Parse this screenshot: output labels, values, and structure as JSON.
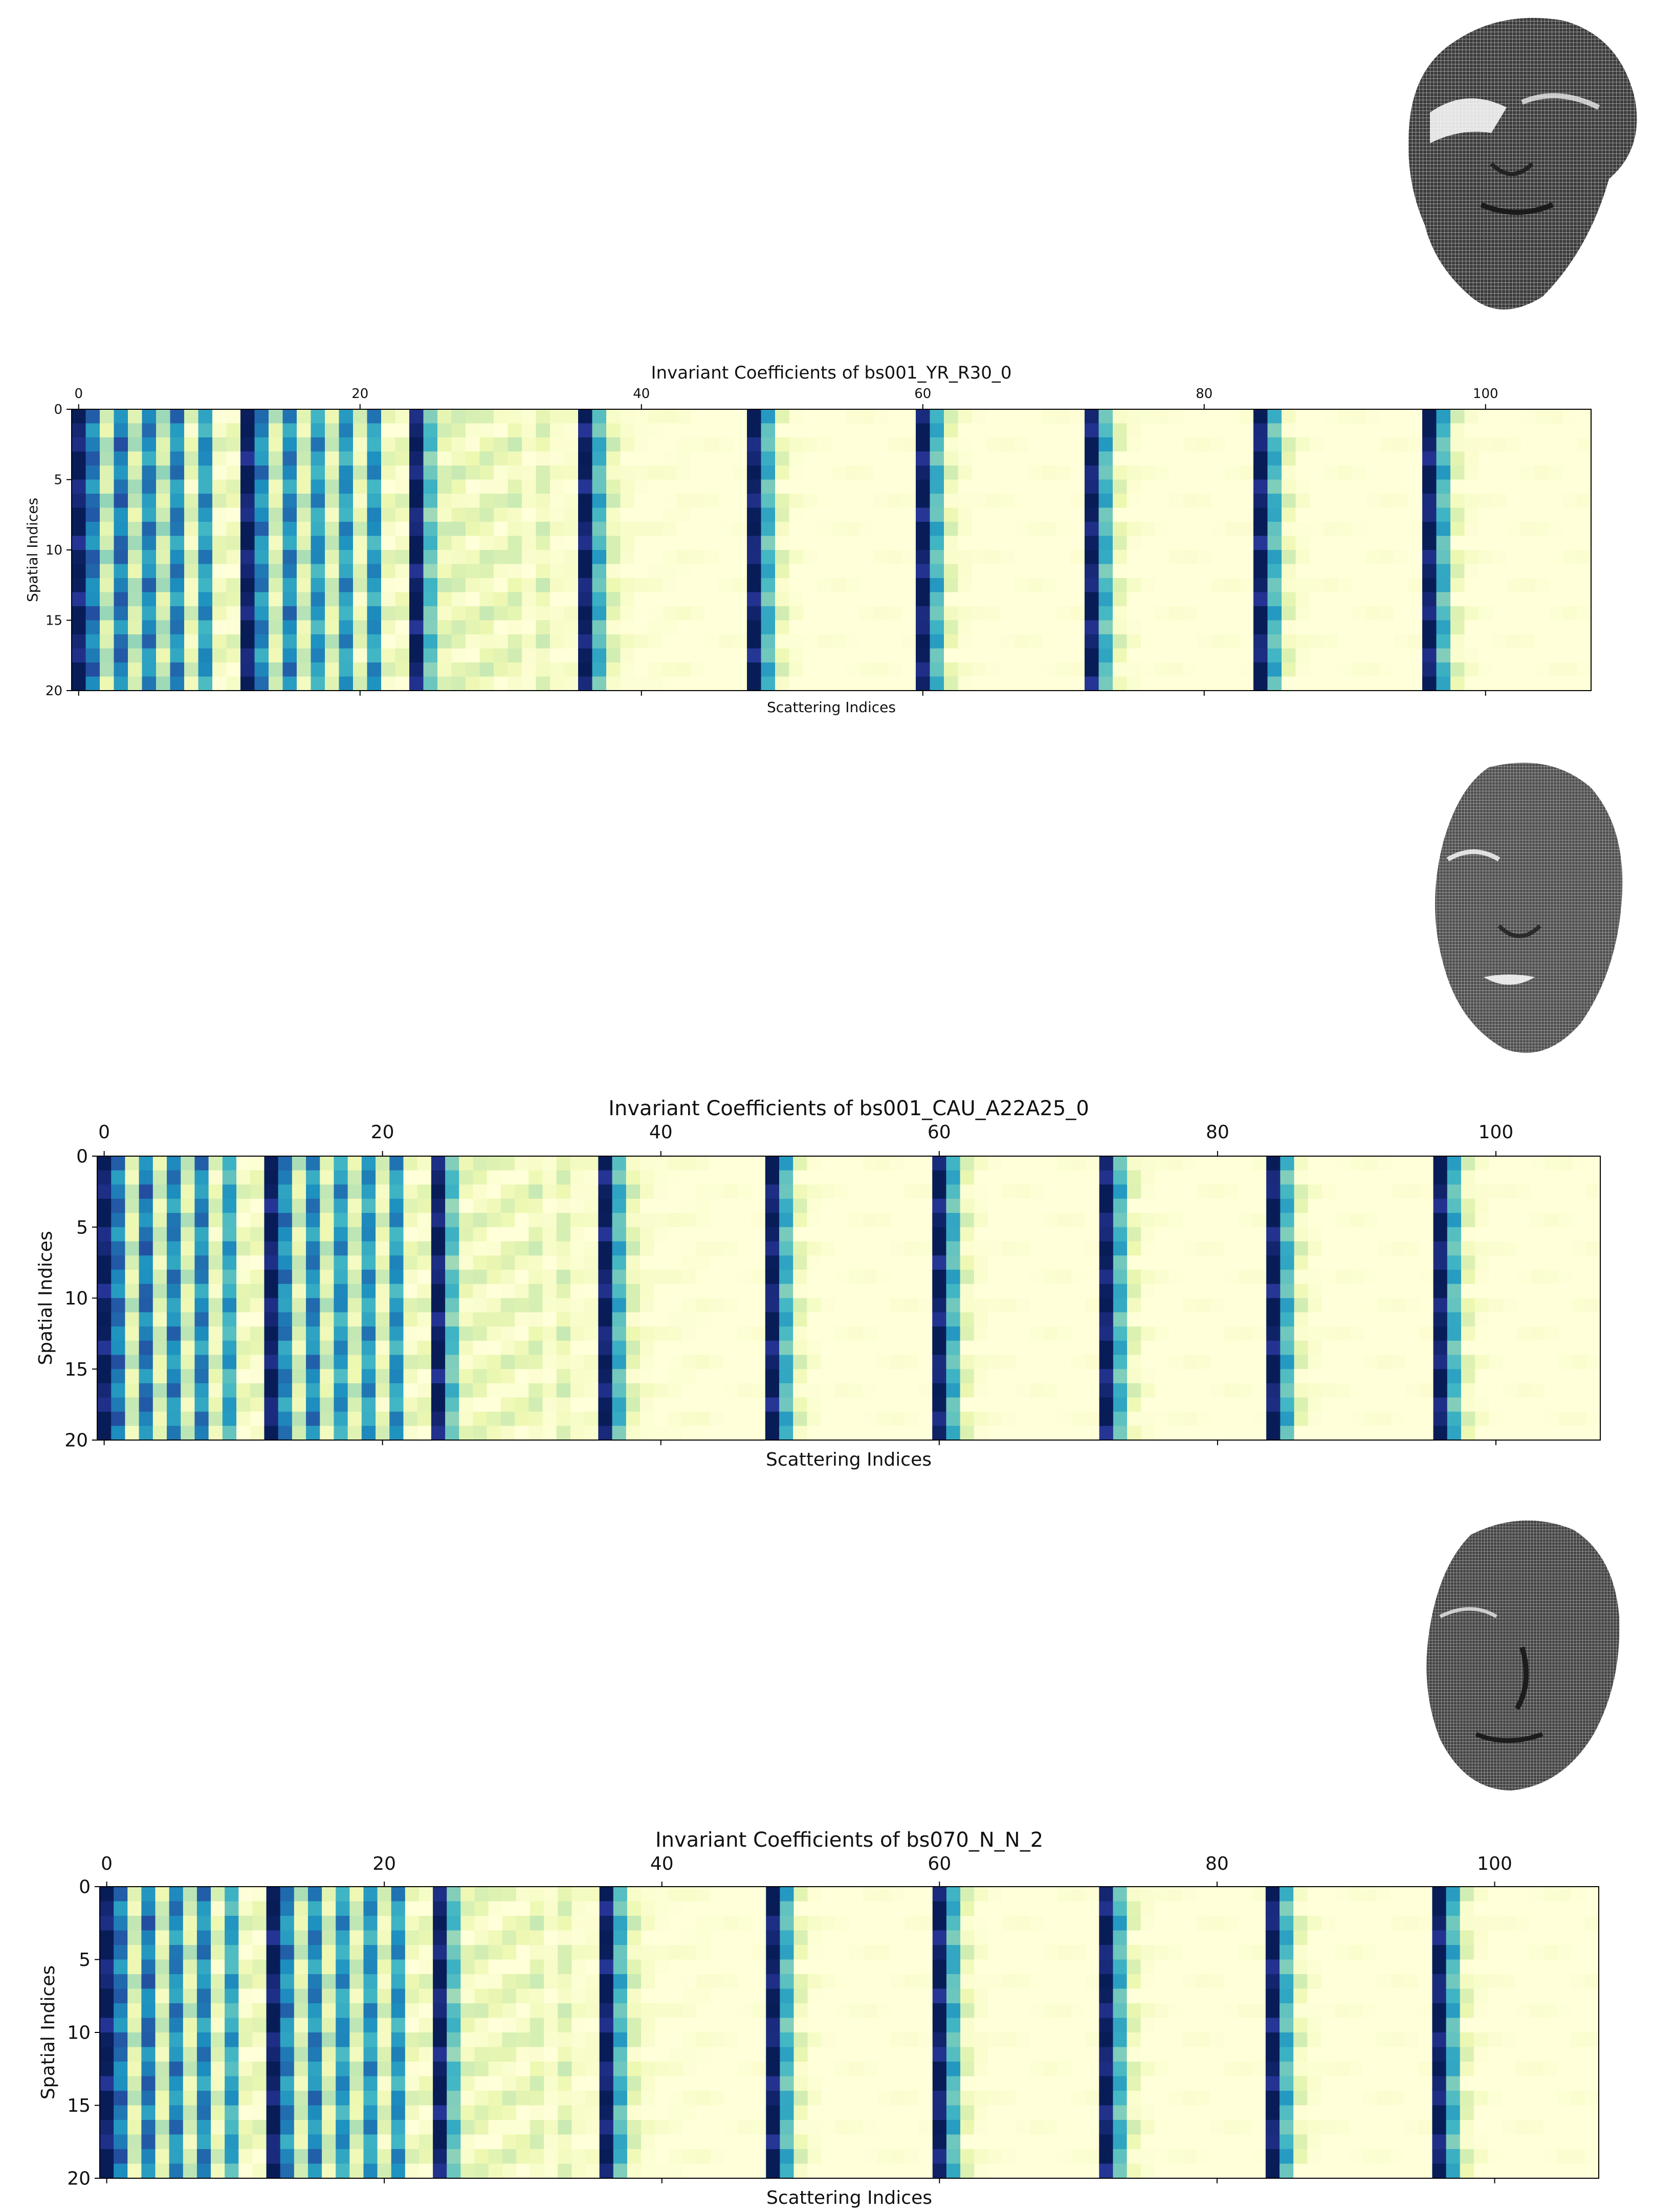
{
  "colormap": [
    "#ffffd9",
    "#edf8b1",
    "#c7e9b4",
    "#7fcdbb",
    "#41b6c4",
    "#1d91c0",
    "#225ea8",
    "#253494",
    "#081d58"
  ],
  "faces": [
    {
      "name": "face-mesh-1",
      "shade": "#4a4a4a"
    },
    {
      "name": "face-mesh-2",
      "shade": "#555555"
    },
    {
      "name": "face-mesh-3",
      "shade": "#4c4c4c"
    }
  ],
  "chart_data": [
    {
      "type": "heatmap",
      "title": "Invariant Coefficients of bs001_YR_R30_0",
      "xlabel": "Scattering Indices",
      "ylabel": "Spatial Indices",
      "xlim": [
        0,
        107
      ],
      "ylim": [
        0,
        20
      ],
      "x_ticks": [
        "0",
        "20",
        "40",
        "60",
        "80",
        "100"
      ],
      "y_ticks": [
        "0",
        "5",
        "10",
        "15",
        "20"
      ],
      "n_cols": 108,
      "n_rows": 20,
      "block_size": 12,
      "block_start_levels": [
        [
          1.0,
          0.7,
          0.25,
          0.7,
          0.25,
          0.65,
          0.25,
          0.65,
          0.15,
          0.6,
          0.1,
          0.1
        ],
        [
          1.0,
          0.65,
          0.2,
          0.65,
          0.2,
          0.6,
          0.2,
          0.6,
          0.15,
          0.6,
          0.1,
          0.1
        ],
        [
          1.0,
          0.45,
          0.15,
          0.15,
          0.1,
          0.15,
          0.1,
          0.15,
          0.05,
          0.15,
          0.05,
          0.05
        ],
        [
          1.0,
          0.5,
          0.15,
          0.05,
          0.02,
          0.02,
          0.02,
          0.02,
          0.0,
          0.0,
          0.0,
          0.0
        ],
        [
          1.0,
          0.5,
          0.12,
          0.03,
          0.0,
          0.0,
          0.0,
          0.0,
          0.0,
          0.0,
          0.0,
          0.0
        ],
        [
          1.0,
          0.5,
          0.12,
          0.03,
          0.0,
          0.0,
          0.0,
          0.0,
          0.0,
          0.0,
          0.0,
          0.0
        ],
        [
          1.0,
          0.5,
          0.12,
          0.03,
          0.0,
          0.0,
          0.0,
          0.0,
          0.0,
          0.0,
          0.0,
          0.0
        ],
        [
          1.0,
          0.5,
          0.12,
          0.03,
          0.0,
          0.0,
          0.0,
          0.0,
          0.0,
          0.0,
          0.0,
          0.0
        ],
        [
          1.0,
          0.5,
          0.12,
          0.03,
          0.0,
          0.0,
          0.0,
          0.0,
          0.0,
          0.0,
          0.0,
          0.0
        ],
        [
          1.0
        ]
      ]
    },
    {
      "type": "heatmap",
      "title": "Invariant Coefficients of bs001_CAU_A22A25_0",
      "xlabel": "Scattering Indices",
      "ylabel": "Spatial Indices",
      "xlim": [
        0,
        107
      ],
      "ylim": [
        0,
        20
      ],
      "x_ticks": [
        "0",
        "20",
        "40",
        "60",
        "80",
        "100"
      ],
      "y_ticks": [
        "0",
        "5",
        "10",
        "15",
        "20"
      ],
      "n_cols": 108,
      "n_rows": 20,
      "block_size": 12,
      "block_start_levels": [
        [
          1.0,
          0.7,
          0.2,
          0.7,
          0.2,
          0.65,
          0.2,
          0.65,
          0.15,
          0.55,
          0.1,
          0.1
        ],
        [
          1.0,
          0.65,
          0.2,
          0.65,
          0.2,
          0.6,
          0.2,
          0.6,
          0.15,
          0.6,
          0.1,
          0.1
        ],
        [
          1.0,
          0.45,
          0.12,
          0.12,
          0.08,
          0.12,
          0.08,
          0.15,
          0.05,
          0.15,
          0.05,
          0.05
        ],
        [
          1.0,
          0.5,
          0.15,
          0.05,
          0.02,
          0.02,
          0.02,
          0.02,
          0.0,
          0.0,
          0.0,
          0.0
        ],
        [
          1.0,
          0.5,
          0.12,
          0.03,
          0.0,
          0.0,
          0.0,
          0.0,
          0.0,
          0.0,
          0.0,
          0.0
        ],
        [
          1.0,
          0.5,
          0.12,
          0.03,
          0.0,
          0.0,
          0.0,
          0.0,
          0.0,
          0.0,
          0.0,
          0.0
        ],
        [
          1.0,
          0.5,
          0.12,
          0.03,
          0.0,
          0.0,
          0.0,
          0.0,
          0.0,
          0.0,
          0.0,
          0.0
        ],
        [
          1.0,
          0.5,
          0.12,
          0.03,
          0.0,
          0.0,
          0.0,
          0.0,
          0.0,
          0.0,
          0.0,
          0.0
        ],
        [
          1.0,
          0.5,
          0.12,
          0.03,
          0.0,
          0.0,
          0.0,
          0.0,
          0.0,
          0.0,
          0.0,
          0.0
        ],
        [
          1.0
        ]
      ]
    },
    {
      "type": "heatmap",
      "title": "Invariant Coefficients of bs070_N_N_2",
      "xlabel": "Scattering Indices",
      "ylabel": "Spatial Indices",
      "xlim": [
        0,
        107
      ],
      "ylim": [
        0,
        20
      ],
      "x_ticks": [
        "0",
        "20",
        "40",
        "60",
        "80",
        "100"
      ],
      "y_ticks": [
        "0",
        "5",
        "10",
        "15",
        "20"
      ],
      "n_cols": 108,
      "n_rows": 20,
      "block_size": 12,
      "block_start_levels": [
        [
          1.0,
          0.7,
          0.2,
          0.7,
          0.2,
          0.65,
          0.2,
          0.65,
          0.15,
          0.55,
          0.1,
          0.1
        ],
        [
          1.0,
          0.65,
          0.2,
          0.65,
          0.2,
          0.6,
          0.2,
          0.6,
          0.15,
          0.6,
          0.1,
          0.1
        ],
        [
          1.0,
          0.45,
          0.12,
          0.12,
          0.08,
          0.12,
          0.08,
          0.15,
          0.05,
          0.15,
          0.05,
          0.05
        ],
        [
          1.0,
          0.5,
          0.15,
          0.05,
          0.02,
          0.02,
          0.02,
          0.02,
          0.0,
          0.0,
          0.0,
          0.0
        ],
        [
          1.0,
          0.5,
          0.12,
          0.03,
          0.0,
          0.0,
          0.0,
          0.0,
          0.0,
          0.0,
          0.0,
          0.0
        ],
        [
          1.0,
          0.5,
          0.12,
          0.03,
          0.0,
          0.0,
          0.0,
          0.0,
          0.0,
          0.0,
          0.0,
          0.0
        ],
        [
          1.0,
          0.5,
          0.12,
          0.03,
          0.0,
          0.0,
          0.0,
          0.0,
          0.0,
          0.0,
          0.0,
          0.0
        ],
        [
          1.0,
          0.5,
          0.12,
          0.03,
          0.0,
          0.0,
          0.0,
          0.0,
          0.0,
          0.0,
          0.0,
          0.0
        ],
        [
          1.0,
          0.5,
          0.12,
          0.03,
          0.0,
          0.0,
          0.0,
          0.0,
          0.0,
          0.0,
          0.0,
          0.0
        ],
        [
          1.0
        ]
      ]
    }
  ]
}
